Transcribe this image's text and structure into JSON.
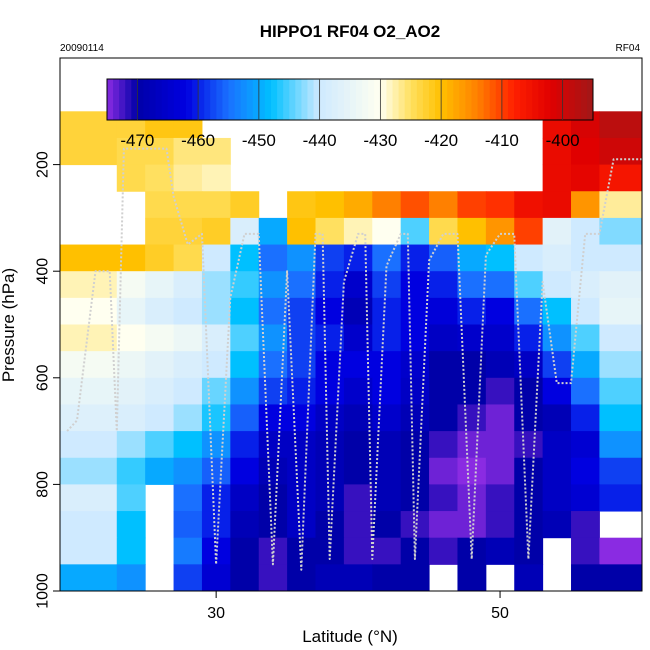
{
  "chart_data": {
    "type": "heatmap",
    "title": "HIPPO1 RF04 O2_AO2",
    "date_label": "20090114",
    "flight_label": "RF04",
    "xlabel": "Latitude (°N)",
    "ylabel": "Pressure (hPa)",
    "xlim": [
      19,
      60
    ],
    "ylim": [
      1000,
      0
    ],
    "x_ticks": [
      30,
      50
    ],
    "y_ticks": [
      200,
      400,
      600,
      800,
      1000
    ],
    "colorbar": {
      "range": [
        -475,
        -395
      ],
      "ticks": [
        -470,
        -460,
        -450,
        -440,
        -430,
        -420,
        -410,
        -400
      ],
      "stops": [
        [
          -475,
          "#8a2be2"
        ],
        [
          -470,
          "#0000a8"
        ],
        [
          -462,
          "#0000e0"
        ],
        [
          -455,
          "#1a70ff"
        ],
        [
          -448,
          "#00c0ff"
        ],
        [
          -440,
          "#cfeaff"
        ],
        [
          -430,
          "#fffff0"
        ],
        [
          -425,
          "#ffe060"
        ],
        [
          -420,
          "#ffc000"
        ],
        [
          -414,
          "#ff8000"
        ],
        [
          -408,
          "#ff2000"
        ],
        [
          -402,
          "#e00000"
        ],
        [
          -395,
          "#a01818"
        ]
      ]
    },
    "grid_lat": [
      19,
      23,
      25,
      27,
      29,
      31,
      33,
      35,
      37,
      39,
      41,
      43,
      45,
      47,
      49,
      51,
      53,
      55,
      57,
      60
    ],
    "grid_pres": [
      100,
      150,
      200,
      250,
      300,
      350,
      400,
      450,
      500,
      550,
      600,
      650,
      700,
      750,
      800,
      850,
      900,
      950,
      1000
    ],
    "values": [
      [
        -423,
        -423,
        -421,
        -421,
        null,
        null,
        null,
        null,
        null,
        null,
        null,
        null,
        null,
        null,
        null,
        null,
        -404,
        -401,
        -398
      ],
      [
        -423,
        -424,
        -424,
        -426,
        -426,
        null,
        null,
        null,
        null,
        null,
        null,
        null,
        null,
        null,
        null,
        null,
        -404,
        -402,
        -400
      ],
      [
        null,
        -424,
        -425,
        -427,
        -428,
        null,
        null,
        null,
        null,
        null,
        null,
        null,
        null,
        null,
        null,
        null,
        -404,
        -403,
        -406
      ],
      [
        null,
        null,
        -424,
        -424,
        -424,
        -422,
        null,
        -421,
        -420,
        -418,
        -414,
        -411,
        -414,
        -410,
        -409,
        -405,
        -404,
        -416,
        -427
      ],
      [
        null,
        null,
        -423,
        -423,
        -422,
        -438,
        -450,
        -420,
        -425,
        -428,
        -430,
        -445,
        -424,
        -420,
        -416,
        -410,
        -436,
        -440,
        -443
      ],
      [
        -420,
        -420,
        -422,
        -424,
        -440,
        -448,
        -455,
        -452,
        -458,
        -460,
        -455,
        -460,
        -456,
        -450,
        -448,
        -440,
        -438,
        -440,
        -440
      ],
      [
        -428,
        -432,
        -435,
        -438,
        -442,
        -446,
        -452,
        -455,
        -460,
        -465,
        -458,
        -462,
        -460,
        -455,
        -455,
        -445,
        -440,
        -438,
        -436
      ],
      [
        -430,
        -435,
        -438,
        -440,
        -442,
        -448,
        -455,
        -458,
        -462,
        -468,
        -460,
        -462,
        -463,
        -460,
        -462,
        -455,
        -448,
        -440,
        -435
      ],
      [
        -428,
        -430,
        -432,
        -434,
        -438,
        -445,
        -452,
        -458,
        -460,
        -465,
        -460,
        -462,
        -466,
        -465,
        -465,
        -460,
        -452,
        -445,
        -440
      ],
      [
        -432,
        -434,
        -436,
        -438,
        -440,
        -448,
        -455,
        -458,
        -462,
        -462,
        -462,
        -465,
        -470,
        -470,
        -468,
        -466,
        -458,
        -450,
        -442
      ],
      [
        -435,
        -436,
        -438,
        -440,
        -444,
        -452,
        -458,
        -460,
        -462,
        -465,
        -462,
        -466,
        -470,
        -470,
        -472,
        -470,
        -462,
        -455,
        -445
      ],
      [
        -437,
        -438,
        -440,
        -442,
        -447,
        -456,
        -462,
        -462,
        -466,
        -468,
        -465,
        -468,
        -470,
        -472,
        -474,
        -470,
        -468,
        -460,
        -448
      ],
      [
        -440,
        -442,
        -445,
        -448,
        -452,
        -460,
        -466,
        -466,
        -468,
        -470,
        -468,
        -470,
        -472,
        -474,
        -474,
        -472,
        -466,
        -464,
        -452
      ],
      [
        -442,
        -446,
        -450,
        -452,
        -456,
        -462,
        -468,
        -466,
        -468,
        -470,
        -468,
        -470,
        -474,
        -475,
        -474,
        -470,
        -466,
        -462,
        -458
      ],
      [
        -438,
        -445,
        null,
        -455,
        -460,
        -466,
        -470,
        -466,
        -468,
        -472,
        -468,
        -470,
        -472,
        -474,
        -472,
        -470,
        -466,
        -464,
        -460
      ],
      [
        -440,
        -448,
        null,
        -456,
        -460,
        -468,
        -470,
        -466,
        -470,
        -472,
        -470,
        -472,
        -474,
        -474,
        -472,
        -470,
        -468,
        -472,
        null
      ],
      [
        -440,
        -448,
        null,
        -454,
        -462,
        -470,
        -472,
        -470,
        -470,
        -472,
        -472,
        -470,
        -472,
        -470,
        -468,
        -470,
        null,
        -472,
        -476
      ],
      [
        -450,
        -452,
        null,
        -458,
        -464,
        -470,
        -472,
        -470,
        -468,
        -468,
        -470,
        -470,
        null,
        -470,
        null,
        -468,
        null,
        -470,
        -470
      ]
    ],
    "profile_points": [
      [
        19.5,
        700
      ],
      [
        20.2,
        680
      ],
      [
        21.5,
        400
      ],
      [
        22.5,
        400
      ],
      [
        23,
        700
      ],
      [
        23.5,
        170
      ],
      [
        25.5,
        170
      ],
      [
        26.5,
        170
      ],
      [
        27,
        260
      ],
      [
        28,
        350
      ],
      [
        29,
        330
      ],
      [
        30,
        950
      ],
      [
        31,
        450
      ],
      [
        32,
        330
      ],
      [
        33,
        330
      ],
      [
        34,
        950
      ],
      [
        35,
        400
      ],
      [
        36,
        960
      ],
      [
        37,
        330
      ],
      [
        37.5,
        330
      ],
      [
        38,
        940
      ],
      [
        39,
        420
      ],
      [
        40,
        330
      ],
      [
        40.5,
        330
      ],
      [
        41,
        940
      ],
      [
        42,
        390
      ],
      [
        43,
        330
      ],
      [
        43.5,
        330
      ],
      [
        44,
        940
      ],
      [
        45,
        380
      ],
      [
        46,
        330
      ],
      [
        47,
        330
      ],
      [
        48,
        940
      ],
      [
        49,
        370
      ],
      [
        50,
        330
      ],
      [
        51,
        330
      ],
      [
        52,
        940
      ],
      [
        53,
        420
      ],
      [
        54,
        610
      ],
      [
        55,
        610
      ],
      [
        56,
        330
      ],
      [
        57,
        330
      ],
      [
        58,
        190
      ],
      [
        59,
        190
      ],
      [
        60,
        190
      ]
    ]
  }
}
